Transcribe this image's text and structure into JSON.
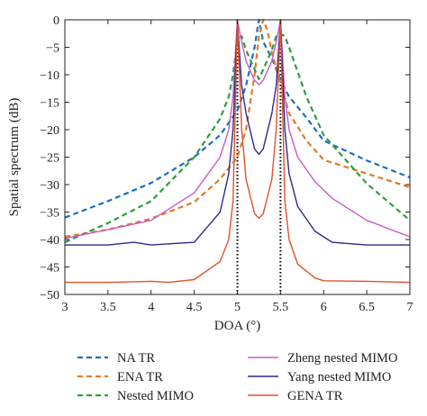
{
  "chart_data": {
    "type": "line",
    "title": "",
    "xlabel": "DOA (°)",
    "ylabel": "Spatial spectrum (dB)",
    "xlim": [
      3,
      7
    ],
    "ylim": [
      -50,
      0
    ],
    "xticks": [
      3,
      3.5,
      4,
      4.5,
      5,
      5.5,
      6,
      6.5,
      7
    ],
    "xtick_labels": [
      "3",
      "3.5",
      "4",
      "4.5",
      "5",
      "5.5",
      "6",
      "6.5",
      "7"
    ],
    "yticks": [
      0,
      -5,
      -10,
      -15,
      -20,
      -25,
      -30,
      -35,
      -40,
      -45,
      -50
    ],
    "ytick_labels": [
      "0",
      "−5",
      "−10",
      "−15",
      "−20",
      "−25",
      "−30",
      "−35",
      "−40",
      "−45",
      "−50"
    ],
    "grid": false,
    "legend_position": "below-plot",
    "true_doa_lines": [
      5,
      5.5
    ],
    "series": [
      {
        "name": "NA TR",
        "color": "#1f6fc0",
        "dashed": true,
        "x": [
          3,
          3.5,
          4,
          4.5,
          4.8,
          5,
          5.1,
          5.2,
          5.25,
          5.3,
          5.4,
          5.5,
          5.6,
          5.8,
          6,
          6.5,
          7
        ],
        "y": [
          -36,
          -33,
          -29.7,
          -25,
          -21,
          -16.5,
          -12,
          -5,
          0,
          -4,
          -7,
          -11,
          -14,
          -17.8,
          -22,
          -25.6,
          -28.7
        ]
      },
      {
        "name": "ENA TR",
        "color": "#e07b27",
        "dashed": true,
        "x": [
          3,
          3.5,
          4,
          4.5,
          4.8,
          5,
          5.1,
          5.2,
          5.25,
          5.3,
          5.35,
          5.4,
          5.5,
          5.6,
          5.8,
          6,
          6.5,
          7
        ],
        "y": [
          -39.5,
          -38.2,
          -36.2,
          -33.2,
          -29,
          -25,
          -20,
          -10,
          -3,
          0,
          -2,
          -6,
          -11.5,
          -17,
          -22,
          -25.5,
          -28,
          -30.5
        ]
      },
      {
        "name": "Nested MIMO",
        "color": "#2e9e3e",
        "dashed": true,
        "x": [
          3,
          3.5,
          4,
          4.5,
          4.8,
          4.9,
          4.95,
          5,
          5.05,
          5.1,
          5.25,
          5.4,
          5.45,
          5.5,
          5.55,
          5.6,
          5.8,
          6,
          6.5,
          7
        ],
        "y": [
          -40.5,
          -37,
          -33,
          -25,
          -18,
          -14,
          -10,
          -3.5,
          -3,
          -5.5,
          -10.8,
          -5.5,
          -3,
          -2.5,
          -3,
          -5,
          -14,
          -21,
          -29.8,
          -36.5
        ]
      },
      {
        "name": "Zheng nested MIMO",
        "color": "#c85bc8",
        "dashed": false,
        "x": [
          3,
          3.5,
          4,
          4.5,
          4.8,
          4.9,
          4.95,
          5,
          5.05,
          5.1,
          5.2,
          5.25,
          5.3,
          5.4,
          5.45,
          5.5,
          5.55,
          5.6,
          5.7,
          5.9,
          6.1,
          6.5,
          7
        ],
        "y": [
          -39.8,
          -38.2,
          -36.5,
          -31.5,
          -25,
          -20,
          -14,
          0,
          -4,
          -7.5,
          -11,
          -11.8,
          -11,
          -7.5,
          -4,
          0,
          -14,
          -20,
          -25,
          -29.5,
          -32.5,
          -36.5,
          -39.5
        ]
      },
      {
        "name": "Yang nested MIMO",
        "color": "#2b2b8a",
        "dashed": false,
        "x": [
          3,
          3.5,
          3.8,
          4,
          4.5,
          4.8,
          4.9,
          4.95,
          5,
          5.05,
          5.1,
          5.2,
          5.25,
          5.3,
          5.4,
          5.45,
          5.5,
          5.55,
          5.6,
          5.7,
          5.9,
          6.1,
          6.5,
          7
        ],
        "y": [
          -41,
          -41,
          -40.5,
          -41,
          -40.5,
          -35,
          -28,
          -20,
          0,
          -12,
          -17,
          -23.5,
          -24.5,
          -23.5,
          -17,
          -12,
          0,
          -20,
          -28,
          -34,
          -38.5,
          -40.5,
          -41,
          -41
        ]
      },
      {
        "name": "GENA TR",
        "color": "#e0522b",
        "dashed": false,
        "x": [
          3,
          3.5,
          4,
          4.2,
          4.5,
          4.8,
          4.9,
          4.95,
          5,
          5.05,
          5.1,
          5.2,
          5.25,
          5.3,
          5.4,
          5.45,
          5.5,
          5.55,
          5.6,
          5.7,
          5.9,
          6,
          6.5,
          7
        ],
        "y": [
          -47.8,
          -47.8,
          -47.6,
          -47.8,
          -47.3,
          -44,
          -40,
          -33,
          0,
          -20,
          -29,
          -35.3,
          -36.1,
          -35.3,
          -29,
          -20,
          0,
          -33,
          -40,
          -44.5,
          -47,
          -47.5,
          -47.6,
          -47.8
        ]
      }
    ]
  }
}
